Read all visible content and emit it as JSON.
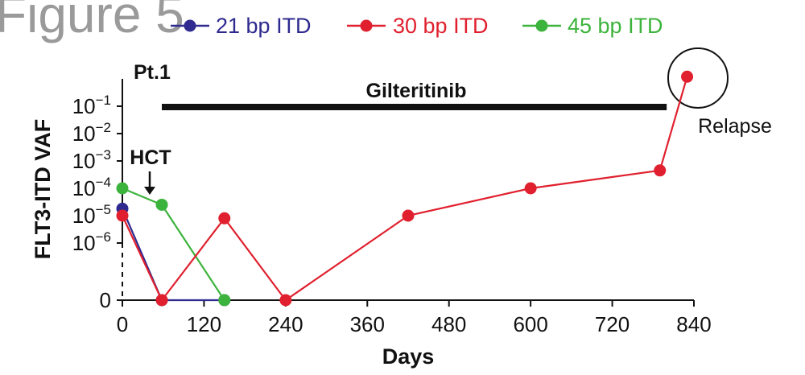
{
  "figure_label": "Figure 5",
  "legend": [
    {
      "label": "21 bp ITD",
      "color": "#2e2a8f"
    },
    {
      "label": "30 bp ITD",
      "color": "#e0202e"
    },
    {
      "label": "45 bp ITD",
      "color": "#3cb33c"
    }
  ],
  "chart_data": {
    "type": "line",
    "title": "Pt.1",
    "xlabel": "Days",
    "ylabel": "FLT3-ITD VAF",
    "x_ticks": [
      0,
      120,
      240,
      360,
      480,
      600,
      720,
      840
    ],
    "xlim": [
      0,
      840
    ],
    "y_scale": "log with zero",
    "y_ticks": [
      {
        "value": 0,
        "base": "0",
        "exp": ""
      },
      {
        "value": 1e-06,
        "base": "10",
        "exp": "−6"
      },
      {
        "value": 1e-05,
        "base": "10",
        "exp": "−5"
      },
      {
        "value": 0.0001,
        "base": "10",
        "exp": "−4"
      },
      {
        "value": 0.001,
        "base": "10",
        "exp": "−3"
      },
      {
        "value": 0.01,
        "base": "10",
        "exp": "−2"
      },
      {
        "value": 0.1,
        "base": "10",
        "exp": "−1"
      }
    ],
    "series": [
      {
        "name": "21 bp ITD",
        "color": "#2e2a8f",
        "points": [
          [
            0,
            1.8e-05
          ],
          [
            58,
            0
          ],
          [
            150,
            0
          ]
        ]
      },
      {
        "name": "45 bp ITD",
        "color": "#3cb33c",
        "points": [
          [
            0,
            0.0001
          ],
          [
            58,
            2.5e-05
          ],
          [
            150,
            0
          ]
        ]
      },
      {
        "name": "30 bp ITD",
        "color": "#e0202e",
        "points": [
          [
            0,
            1e-05
          ],
          [
            58,
            0
          ],
          [
            150,
            8e-06
          ],
          [
            240,
            0
          ],
          [
            420,
            1e-05
          ],
          [
            600,
            0.0001
          ],
          [
            790,
            0.00045
          ],
          [
            830,
            1.2
          ]
        ]
      }
    ],
    "annotations": {
      "treatment": {
        "label": "Gilteritinib",
        "start_day": 58,
        "end_day": 800
      },
      "event": {
        "label": "HCT",
        "day": 40
      },
      "relapse": {
        "label": "Relapse",
        "day": 830,
        "value": 1.2
      }
    }
  }
}
